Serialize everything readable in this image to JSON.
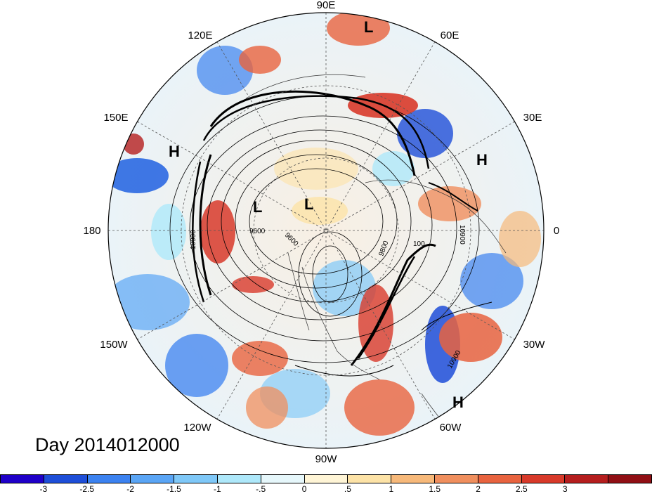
{
  "title": "Day 2014012000",
  "map": {
    "projection": "polar-stereographic-north",
    "longitude_labels": [
      "90E",
      "60E",
      "30E",
      "0",
      "30W",
      "60W",
      "90W",
      "120W",
      "150W",
      "180",
      "150E",
      "120E"
    ],
    "pressure_systems": [
      {
        "label": "L"
      },
      {
        "label": "L"
      },
      {
        "label": "L"
      },
      {
        "label": "H"
      },
      {
        "label": "H"
      },
      {
        "label": "H"
      }
    ],
    "contour_labels": [
      "10900",
      "9600",
      "9600",
      "9800",
      "100",
      "10900",
      "10900"
    ]
  },
  "colorbar": {
    "colors": [
      "#1f00c8",
      "#1e4ed8",
      "#3c82f0",
      "#5aa5f5",
      "#7fc8f8",
      "#aee8fa",
      "#e6f7fb",
      "#fff5d6",
      "#fde3a7",
      "#f7b97a",
      "#f08f5e",
      "#e8633f",
      "#d83a2a",
      "#b51e1e",
      "#900f14"
    ],
    "ticks": [
      "-3",
      "-2.5",
      "-2",
      "-1.5",
      "-1",
      "-.5",
      "0",
      ".5",
      "1",
      "1.5",
      "2",
      "2.5",
      "3"
    ]
  }
}
